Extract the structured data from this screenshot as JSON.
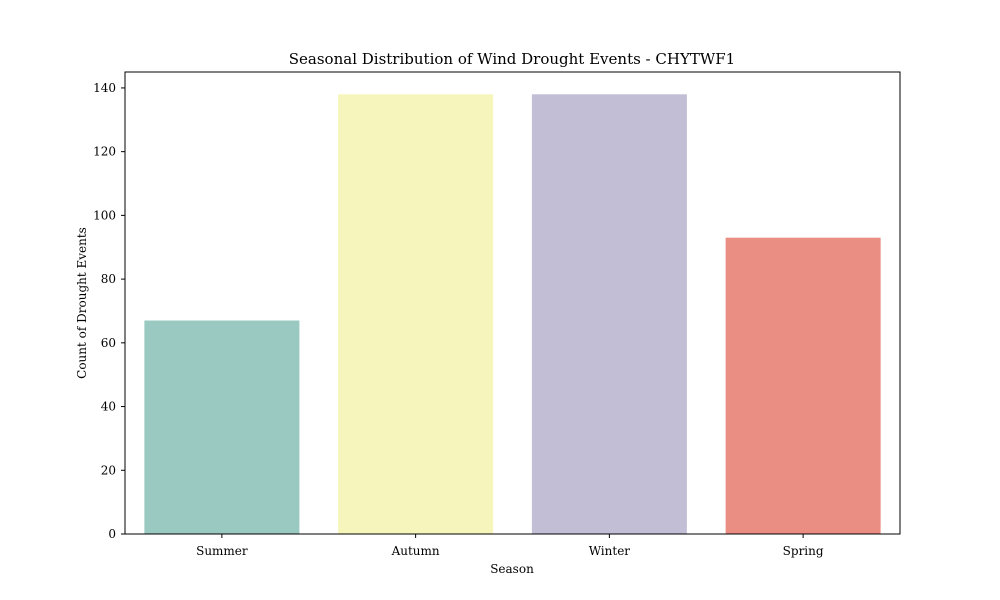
{
  "chart_data": {
    "type": "bar",
    "title": "Seasonal Distribution of Wind Drought Events - CHYTWF1",
    "xlabel": "Season",
    "ylabel": "Count of Drought Events",
    "categories": [
      "Summer",
      "Autumn",
      "Winter",
      "Spring"
    ],
    "values": [
      67,
      138,
      138,
      93
    ],
    "colors": [
      "#99c9c1",
      "#f6f6bc",
      "#c1bed6",
      "#ea8d82"
    ],
    "ylim": [
      0,
      145
    ],
    "yticks": [
      0,
      20,
      40,
      60,
      80,
      100,
      120,
      140
    ],
    "grid": false,
    "legend": "none"
  }
}
